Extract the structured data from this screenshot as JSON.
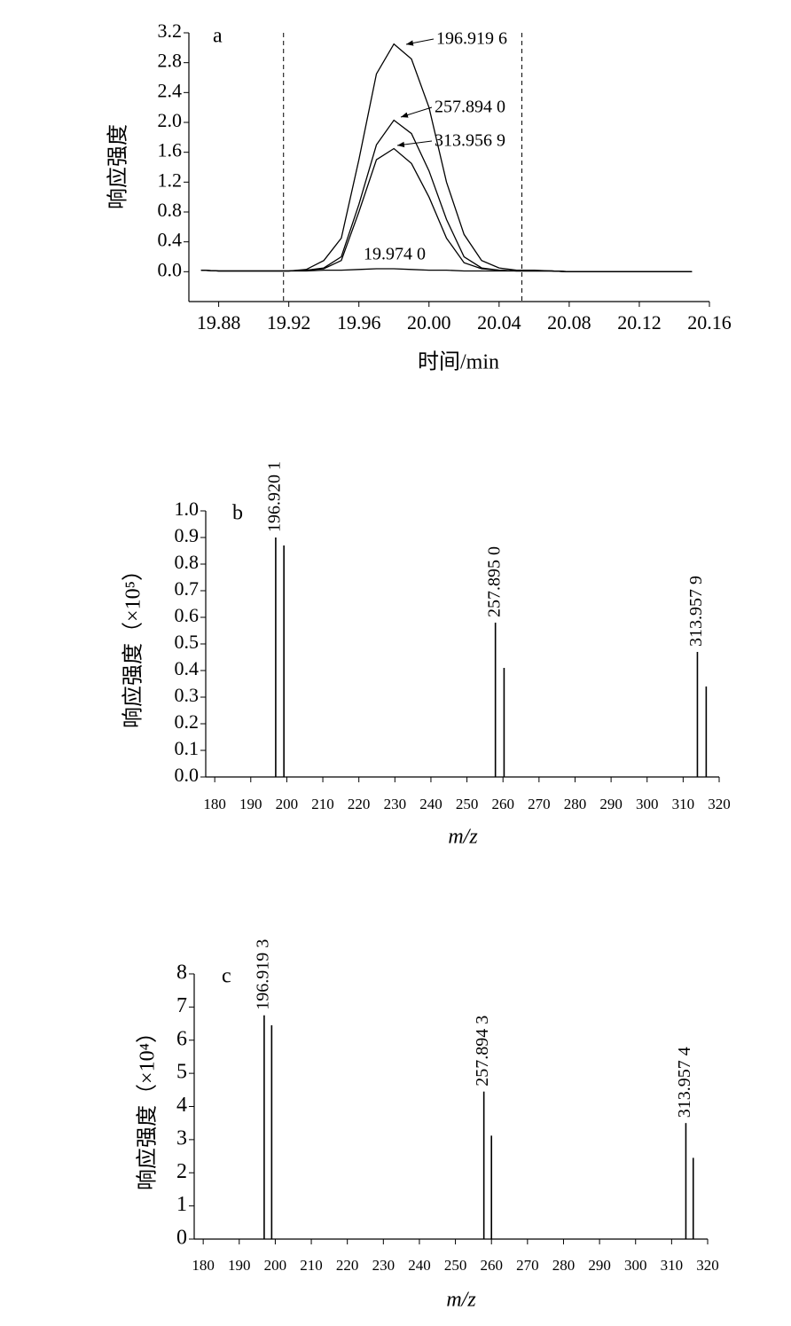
{
  "chart_data": [
    {
      "type": "line",
      "panel_label": "a",
      "ylabel": "响应强度",
      "xlabel": "时间/min",
      "color": "#000000",
      "xlim": [
        19.863,
        20.16
      ],
      "ylim": [
        -0.4,
        3.2
      ],
      "xticks": [
        19.88,
        19.92,
        19.96,
        {
          "value": 20,
          "label": "20.00"
        },
        20.04,
        20.08,
        20.12,
        20.16
      ],
      "yticks": [
        {
          "value": 0,
          "label": "0.0"
        },
        0.4,
        0.8,
        1.2,
        1.6,
        {
          "value": 2,
          "label": "2.0"
        },
        2.4,
        2.8,
        3.2
      ],
      "vlines": [
        19.917,
        20.053
      ],
      "x": [
        19.87,
        19.88,
        19.89,
        19.9,
        19.91,
        19.92,
        19.93,
        19.94,
        19.95,
        19.96,
        19.97,
        19.98,
        19.99,
        20.0,
        20.01,
        20.02,
        20.03,
        20.04,
        20.05,
        20.06,
        20.07,
        20.08,
        20.09,
        20.1,
        20.11,
        20.12,
        20.13,
        20.14,
        20.15
      ],
      "series": [
        {
          "name": "196.919 6",
          "values": [
            0.02,
            0.01,
            0.01,
            0.01,
            0.01,
            0.01,
            0.03,
            0.15,
            0.45,
            1.5,
            2.65,
            3.05,
            2.85,
            2.2,
            1.2,
            0.5,
            0.15,
            0.05,
            0.02,
            0.02,
            0.01,
            0,
            0,
            0,
            0,
            0,
            0,
            0,
            0
          ]
        },
        {
          "name": "257.894 0",
          "values": [
            0.02,
            0.01,
            0.01,
            0.01,
            0.01,
            0.01,
            0.02,
            0.05,
            0.2,
            0.9,
            1.7,
            2.03,
            1.85,
            1.35,
            0.7,
            0.2,
            0.05,
            0.02,
            0.01,
            0.01,
            0.01,
            0,
            0,
            0,
            0,
            0,
            0,
            0,
            0
          ]
        },
        {
          "name": "313.956 9",
          "values": [
            0.02,
            0.01,
            0.01,
            0.01,
            0.01,
            0.01,
            0.02,
            0.04,
            0.15,
            0.8,
            1.5,
            1.65,
            1.45,
            1.0,
            0.45,
            0.12,
            0.04,
            0.02,
            0.01,
            0.01,
            0.01,
            0,
            0,
            0,
            0,
            0,
            0,
            0,
            0
          ]
        },
        {
          "name": "19.974 0",
          "values": [
            0.02,
            0.01,
            0.01,
            0.01,
            0.01,
            0.01,
            0.01,
            0.02,
            0.02,
            0.03,
            0.04,
            0.04,
            0.03,
            0.02,
            0.02,
            0.01,
            0.01,
            0.01,
            0.01,
            0.01,
            0.01,
            0,
            0,
            0,
            0,
            0,
            0,
            0,
            0
          ]
        }
      ]
    },
    {
      "type": "bar",
      "panel_label": "b",
      "ylabel": "响应强度（×10⁵）",
      "xlabel": "m/z",
      "color": "#000000",
      "xlim": [
        177.5,
        320
      ],
      "ylim": [
        0,
        1
      ],
      "xticks": [
        180,
        190,
        200,
        210,
        220,
        230,
        240,
        250,
        260,
        270,
        280,
        290,
        300,
        310,
        320
      ],
      "yticks": [
        {
          "value": 0,
          "label": "0.0"
        },
        0.1,
        0.2,
        0.3,
        0.4,
        0.5,
        0.6,
        0.7,
        0.8,
        0.9,
        {
          "value": 1,
          "label": "1.0"
        }
      ],
      "x": [
        196.9201,
        199.2,
        257.895,
        260.3,
        313.9579,
        316.4
      ],
      "x_labels": [
        "196.920 1",
        null,
        "257.895 0",
        null,
        "313.957 9",
        null
      ],
      "values": [
        0.9,
        0.87,
        0.58,
        0.41,
        0.47,
        0.34
      ]
    },
    {
      "type": "bar",
      "panel_label": "c",
      "ylabel": "响应强度（×10⁴）",
      "xlabel": "m/z",
      "color": "#000000",
      "xlim": [
        177.5,
        320
      ],
      "ylim": [
        0,
        8
      ],
      "xticks": [
        180,
        190,
        200,
        210,
        220,
        230,
        240,
        250,
        260,
        270,
        280,
        290,
        300,
        310,
        320
      ],
      "yticks": [
        0,
        1,
        2,
        3,
        4,
        5,
        6,
        7,
        8
      ],
      "x": [
        196.9193,
        199.0,
        257.8943,
        260.0,
        313.9574,
        316.0
      ],
      "x_labels": [
        "196.919 3",
        null,
        "257.894 3",
        null,
        "313.957 4",
        null
      ],
      "values": [
        6.75,
        6.45,
        4.45,
        3.12,
        3.5,
        2.45
      ]
    }
  ]
}
